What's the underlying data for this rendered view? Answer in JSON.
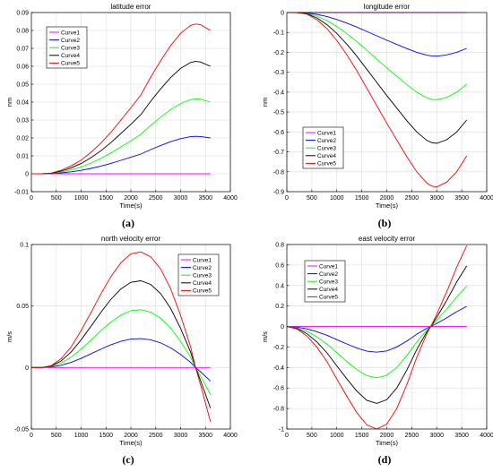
{
  "chart_data": [
    {
      "type": "line",
      "caption": "(a)",
      "title": "latitude error",
      "xlabel": "Time(s)",
      "ylabel": "nm",
      "xlim": [
        0,
        4000
      ],
      "ylim": [
        -0.01,
        0.09
      ],
      "xticks": [
        "0",
        "500",
        "1000",
        "1500",
        "2000",
        "2500",
        "3000",
        "3500",
        "4000"
      ],
      "yticks": [
        "-0.01",
        "0",
        "0.01",
        "0.02",
        "0.03",
        "0.04",
        "0.05",
        "0.06",
        "0.07",
        "0.08",
        "0.09"
      ],
      "grid": true,
      "legend_position": "top-left",
      "x": [
        0,
        200,
        400,
        600,
        800,
        1000,
        1200,
        1400,
        1600,
        1800,
        2000,
        2200,
        2400,
        2600,
        2800,
        3000,
        3200,
        3300,
        3400,
        3600
      ],
      "series": [
        {
          "name": "Curve1",
          "color": "#ff00ff",
          "values": [
            0,
            0,
            0,
            0,
            0,
            0,
            0,
            0,
            0,
            0,
            0,
            0,
            0,
            0,
            0,
            0,
            0,
            0,
            0,
            0
          ]
        },
        {
          "name": "Curve2",
          "color": "#0000ff",
          "values": [
            0,
            0,
            0.0001,
            0.0005,
            0.0011,
            0.0019,
            0.003,
            0.0043,
            0.0058,
            0.0075,
            0.0092,
            0.011,
            0.0135,
            0.0158,
            0.0179,
            0.0196,
            0.0207,
            0.0209,
            0.0208,
            0.02
          ]
        },
        {
          "name": "Curve3",
          "color": "#00ff00",
          "values": [
            0,
            0,
            0.0002,
            0.001,
            0.0022,
            0.0038,
            0.006,
            0.0086,
            0.0116,
            0.015,
            0.0184,
            0.022,
            0.027,
            0.0316,
            0.0358,
            0.0392,
            0.0414,
            0.0418,
            0.0416,
            0.04
          ]
        },
        {
          "name": "Curve4",
          "color": "#000000",
          "values": [
            0,
            0,
            0.0003,
            0.0015,
            0.0033,
            0.0057,
            0.009,
            0.0129,
            0.0174,
            0.0225,
            0.0276,
            0.033,
            0.0405,
            0.0474,
            0.0537,
            0.0588,
            0.0621,
            0.0627,
            0.0624,
            0.06
          ]
        },
        {
          "name": "Curve5",
          "color": "#ff0000",
          "values": [
            0,
            0,
            0.0004,
            0.002,
            0.0044,
            0.0076,
            0.012,
            0.0172,
            0.0232,
            0.03,
            0.0368,
            0.044,
            0.054,
            0.0632,
            0.0716,
            0.0784,
            0.0828,
            0.0836,
            0.0832,
            0.08
          ]
        }
      ]
    },
    {
      "type": "line",
      "caption": "(b)",
      "title": "longitude error",
      "xlabel": "Time(s)",
      "ylabel": "nm",
      "xlim": [
        0,
        4000
      ],
      "ylim": [
        -0.9,
        0
      ],
      "xticks": [
        "0",
        "500",
        "1000",
        "1500",
        "2000",
        "2500",
        "3000",
        "3500",
        "4000"
      ],
      "yticks": [
        "-0.9",
        "-0.8",
        "-0.7",
        "-0.6",
        "-0.5",
        "-0.4",
        "-0.3",
        "-0.2",
        "-0.1",
        "0"
      ],
      "grid": true,
      "legend_position": "bottom-left",
      "x": [
        0,
        200,
        400,
        600,
        800,
        1000,
        1200,
        1400,
        1600,
        1800,
        2000,
        2200,
        2400,
        2600,
        2800,
        2900,
        3000,
        3200,
        3400,
        3600
      ],
      "series": [
        {
          "name": "Curve1",
          "color": "#ff00ff",
          "values": [
            0,
            0,
            0,
            0,
            0,
            0,
            0,
            0,
            0,
            0,
            0,
            0,
            0,
            0,
            0,
            0,
            0,
            0,
            0,
            0
          ]
        },
        {
          "name": "Curve2",
          "color": "#0000ff",
          "values": [
            0,
            0,
            -0.002,
            -0.009,
            -0.02,
            -0.035,
            -0.053,
            -0.073,
            -0.095,
            -0.117,
            -0.139,
            -0.16,
            -0.181,
            -0.2,
            -0.214,
            -0.218,
            -0.219,
            -0.213,
            -0.2,
            -0.18
          ]
        },
        {
          "name": "Curve3",
          "color": "#00ff00",
          "values": [
            0,
            0,
            -0.004,
            -0.018,
            -0.04,
            -0.07,
            -0.106,
            -0.146,
            -0.19,
            -0.234,
            -0.278,
            -0.32,
            -0.362,
            -0.4,
            -0.428,
            -0.436,
            -0.438,
            -0.426,
            -0.4,
            -0.36
          ]
        },
        {
          "name": "Curve4",
          "color": "#000000",
          "values": [
            0,
            0,
            -0.006,
            -0.027,
            -0.06,
            -0.105,
            -0.159,
            -0.219,
            -0.285,
            -0.351,
            -0.417,
            -0.48,
            -0.543,
            -0.6,
            -0.642,
            -0.654,
            -0.657,
            -0.639,
            -0.6,
            -0.54
          ]
        },
        {
          "name": "Curve5",
          "color": "#ff0000",
          "values": [
            0,
            0,
            -0.008,
            -0.036,
            -0.08,
            -0.14,
            -0.212,
            -0.292,
            -0.38,
            -0.468,
            -0.556,
            -0.64,
            -0.724,
            -0.8,
            -0.856,
            -0.872,
            -0.876,
            -0.852,
            -0.8,
            -0.72
          ]
        }
      ]
    },
    {
      "type": "line",
      "caption": "(c)",
      "title": "north velocity error",
      "xlabel": "Time(s)",
      "ylabel": "m/s",
      "xlim": [
        0,
        4000
      ],
      "ylim": [
        -0.05,
        0.1
      ],
      "xticks": [
        "0",
        "500",
        "1000",
        "1500",
        "2000",
        "2500",
        "3000",
        "3500",
        "4000"
      ],
      "yticks": [
        "-0.05",
        "0",
        "0.05",
        "0.1"
      ],
      "grid": true,
      "legend_position": "top-right",
      "x": [
        0,
        200,
        400,
        600,
        800,
        1000,
        1200,
        1400,
        1600,
        1800,
        2000,
        2200,
        2400,
        2600,
        2800,
        3000,
        3200,
        3300,
        3400,
        3600
      ],
      "series": [
        {
          "name": "Curve1",
          "color": "#ff00ff",
          "values": [
            0,
            0,
            0,
            0,
            0,
            0,
            0,
            0,
            0,
            0,
            0,
            0,
            0,
            0,
            0,
            0,
            0,
            0,
            0,
            0
          ]
        },
        {
          "name": "Curve2",
          "color": "#0000ff",
          "values": [
            0,
            0,
            0.0004,
            0.0018,
            0.0042,
            0.0075,
            0.0112,
            0.015,
            0.0185,
            0.0213,
            0.0231,
            0.0235,
            0.0225,
            0.02,
            0.016,
            0.0106,
            0.0042,
            0,
            -0.0035,
            -0.011
          ]
        },
        {
          "name": "Curve3",
          "color": "#00ff00",
          "values": [
            0,
            0,
            0.0008,
            0.0036,
            0.0084,
            0.015,
            0.0224,
            0.03,
            0.037,
            0.0426,
            0.0462,
            0.047,
            0.045,
            0.04,
            0.032,
            0.0212,
            0.0084,
            0,
            -0.007,
            -0.022
          ]
        },
        {
          "name": "Curve4",
          "color": "#000000",
          "values": [
            0,
            0,
            0.0012,
            0.0054,
            0.0126,
            0.0225,
            0.0336,
            0.045,
            0.0555,
            0.0639,
            0.0693,
            0.0705,
            0.0675,
            0.06,
            0.048,
            0.0318,
            0.0126,
            0,
            -0.0105,
            -0.033
          ]
        },
        {
          "name": "Curve5",
          "color": "#ff0000",
          "values": [
            0,
            0,
            0.0016,
            0.0072,
            0.0168,
            0.03,
            0.0448,
            0.06,
            0.074,
            0.0852,
            0.0924,
            0.094,
            0.09,
            0.08,
            0.064,
            0.0424,
            0.0168,
            0,
            -0.014,
            -0.044
          ]
        }
      ]
    },
    {
      "type": "line",
      "caption": "(d)",
      "title": "east velocity error",
      "xlabel": "Time(s)",
      "ylabel": "m/s",
      "xlim": [
        0,
        4000
      ],
      "ylim": [
        -1,
        0.8
      ],
      "xticks": [
        "0",
        "500",
        "1000",
        "1500",
        "2000",
        "2500",
        "3000",
        "3500",
        "4000"
      ],
      "yticks": [
        "-1",
        "-0.8",
        "-0.6",
        "-0.4",
        "-0.2",
        "0",
        "0.2",
        "0.4",
        "0.6",
        "0.8"
      ],
      "grid": true,
      "legend_position": "top-left",
      "x": [
        0,
        200,
        400,
        600,
        800,
        1000,
        1200,
        1400,
        1600,
        1800,
        2000,
        2200,
        2400,
        2600,
        2800,
        2900,
        3000,
        3200,
        3400,
        3600
      ],
      "series": [
        {
          "name": "Curve1",
          "color": "#ff00ff",
          "values": [
            0,
            0,
            0,
            0,
            0,
            0,
            0,
            0,
            0,
            0,
            0,
            0,
            0,
            0,
            0,
            0,
            0,
            0,
            0,
            0
          ]
        },
        {
          "name": "Curve2",
          "color": "#0000ff",
          "values": [
            0,
            -0.006,
            -0.023,
            -0.05,
            -0.085,
            -0.128,
            -0.17,
            -0.21,
            -0.24,
            -0.25,
            -0.238,
            -0.2,
            -0.142,
            -0.075,
            -0.018,
            0.005,
            0.03,
            0.085,
            0.145,
            0.197
          ]
        },
        {
          "name": "Curve3",
          "color": "#00ff00",
          "values": [
            0,
            -0.012,
            -0.046,
            -0.1,
            -0.17,
            -0.256,
            -0.34,
            -0.42,
            -0.48,
            -0.5,
            -0.476,
            -0.4,
            -0.284,
            -0.15,
            -0.036,
            0.01,
            0.06,
            0.17,
            0.29,
            0.394
          ]
        },
        {
          "name": "Curve4",
          "color": "#000000",
          "values": [
            0,
            -0.018,
            -0.069,
            -0.15,
            -0.255,
            -0.384,
            -0.51,
            -0.63,
            -0.72,
            -0.75,
            -0.714,
            -0.6,
            -0.426,
            -0.225,
            -0.054,
            0.015,
            0.09,
            0.255,
            0.435,
            0.591
          ]
        },
        {
          "name": "Curve5",
          "color": "#ff0000",
          "values": [
            0,
            -0.024,
            -0.092,
            -0.2,
            -0.34,
            -0.512,
            -0.68,
            -0.84,
            -0.96,
            -1.0,
            -0.952,
            -0.8,
            -0.568,
            -0.3,
            -0.072,
            0.02,
            0.12,
            0.34,
            0.58,
            0.788
          ]
        }
      ]
    }
  ]
}
